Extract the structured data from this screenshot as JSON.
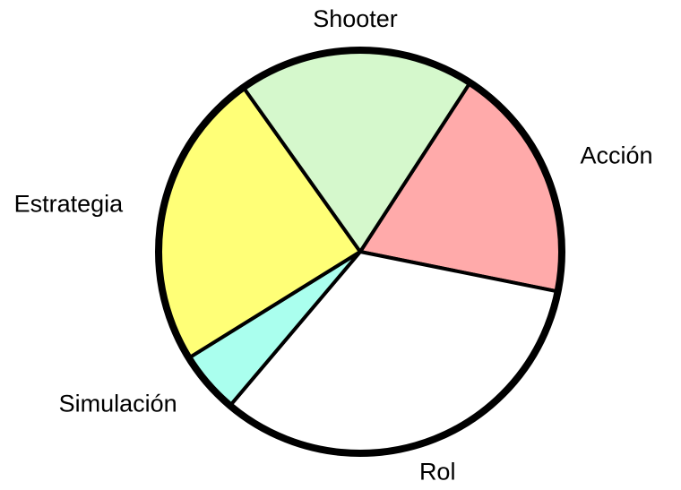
{
  "chart_data": {
    "type": "pie",
    "categories": [
      "Acción",
      "Rol",
      "Simulación",
      "Estrategia",
      "Shooter"
    ],
    "values": [
      19,
      33,
      5,
      24,
      19
    ],
    "colors": [
      "#ffaaaa",
      "#ffffff",
      "#aaffee",
      "#ffff77",
      "#d5f8cc"
    ],
    "outline_color": "#000000",
    "legend": "none",
    "title": ""
  }
}
